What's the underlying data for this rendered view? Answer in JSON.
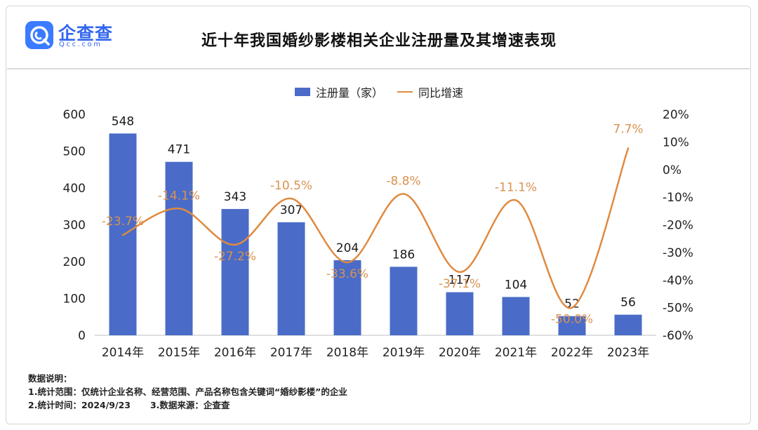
{
  "brand": {
    "name": "企查查",
    "domain": "Qcc.com",
    "color": "#3a7bff"
  },
  "header": {
    "title": "近十年我国婚纱影楼相关企业注册量及其增速表现"
  },
  "legend": {
    "bar_label": "注册量（家）",
    "line_label": "同比增速"
  },
  "notes": {
    "heading": "数据说明：",
    "line1": "1.统计范围：仅统计企业名称、经营范围、产品名称包含关键词“婚纱影楼”的企业",
    "line2a": "2.统计时间：2024/9/23",
    "line2b": "3.数据来源：企查查"
  },
  "colors": {
    "bar": "#4a6cc8",
    "line": "#e08a40",
    "line_label": "#d9924f"
  },
  "chart_data": {
    "type": "bar",
    "title": "近十年我国婚纱影楼相关企业注册量及其增速表现",
    "categories": [
      "2014年",
      "2015年",
      "2016年",
      "2017年",
      "2018年",
      "2019年",
      "2020年",
      "2021年",
      "2022年",
      "2023年"
    ],
    "series": [
      {
        "name": "注册量（家）",
        "type": "bar",
        "axis": "left",
        "values": [
          548,
          471,
          343,
          307,
          204,
          186,
          117,
          104,
          52,
          56
        ],
        "labels": [
          "548",
          "471",
          "343",
          "307",
          "204",
          "186",
          "117",
          "104",
          "52",
          "56"
        ]
      },
      {
        "name": "同比增速",
        "type": "line",
        "axis": "right",
        "values": [
          -23.7,
          -14.1,
          -27.2,
          -10.5,
          -33.6,
          -8.8,
          -37.1,
          -11.1,
          -50.0,
          7.7
        ],
        "labels": [
          "-23.7%",
          "-14.1%",
          "-27.2%",
          "-10.5%",
          "-33.6%",
          "-8.8%",
          "-37.1%",
          "-11.1%",
          "-50.0%",
          "7.7%"
        ]
      }
    ],
    "y_left": {
      "min": 0,
      "max": 600,
      "ticks": [
        "0",
        "100",
        "200",
        "300",
        "400",
        "500",
        "600"
      ]
    },
    "y_right": {
      "min": -60,
      "max": 20,
      "ticks": [
        "-60%",
        "-50%",
        "-40%",
        "-30%",
        "-20%",
        "-10%",
        "0%",
        "10%",
        "20%"
      ]
    },
    "grid": false,
    "legend_position": "top-center"
  }
}
